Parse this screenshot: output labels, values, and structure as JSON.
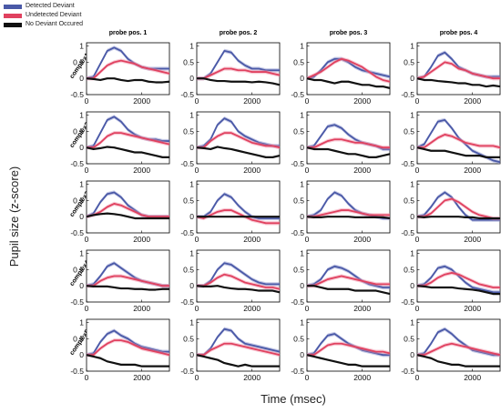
{
  "legend": {
    "items": [
      {
        "label": "Detected Deviant",
        "color": "#4a59a7"
      },
      {
        "label": "Undetected Deviant",
        "color": "#e0415f"
      },
      {
        "label": "No Deviant Occured",
        "color": "#111111"
      }
    ]
  },
  "chart_data": {
    "type": "line",
    "columns": [
      "probe pos. 1",
      "probe pos. 2",
      "probe pos. 3",
      "probe pos. 4"
    ],
    "rows": [
      "complex1",
      "complex2",
      "complex3",
      "complex4",
      "complex5"
    ],
    "xlabel": "Time (msec)",
    "ylabel": "Pupil size (z-score)",
    "xlim": [
      0,
      3000
    ],
    "ylim": [
      -0.5,
      1.1
    ],
    "xticks": [
      0,
      2000
    ],
    "yticks": [
      -0.5,
      0,
      0.5,
      1
    ],
    "x": [
      0,
      250,
      500,
      750,
      1000,
      1250,
      1500,
      1750,
      2000,
      2250,
      2500,
      2750,
      3000
    ],
    "series_names": [
      "Detected Deviant",
      "Undetected Deviant",
      "No Deviant Occured"
    ],
    "panels": [
      [
        {
          "series": [
            [
              0,
              0.05,
              0.45,
              0.85,
              0.95,
              0.85,
              0.6,
              0.45,
              0.35,
              0.3,
              0.3,
              0.3,
              0.3
            ],
            [
              0,
              0,
              0.2,
              0.4,
              0.5,
              0.55,
              0.5,
              0.45,
              0.35,
              0.3,
              0.25,
              0.2,
              0.15
            ],
            [
              0,
              -0.02,
              -0.05,
              0,
              0,
              -0.05,
              -0.08,
              -0.05,
              -0.05,
              -0.1,
              -0.12,
              -0.12,
              -0.1
            ]
          ]
        },
        {
          "series": [
            [
              0,
              0,
              0.15,
              0.5,
              0.85,
              0.8,
              0.55,
              0.4,
              0.3,
              0.3,
              0.25,
              0.25,
              0.25
            ],
            [
              0,
              0,
              0.1,
              0.2,
              0.3,
              0.3,
              0.25,
              0.25,
              0.2,
              0.2,
              0.2,
              0.15,
              0.1
            ],
            [
              0,
              0,
              -0.05,
              -0.08,
              -0.08,
              -0.1,
              -0.1,
              -0.1,
              -0.12,
              -0.1,
              -0.12,
              -0.15,
              -0.2
            ]
          ]
        },
        {
          "series": [
            [
              0,
              0.05,
              0.25,
              0.5,
              0.6,
              0.6,
              0.5,
              0.35,
              0.25,
              0.2,
              0.15,
              0.1,
              0.05
            ],
            [
              0,
              0.1,
              0.2,
              0.35,
              0.5,
              0.6,
              0.55,
              0.45,
              0.35,
              0.2,
              0.05,
              -0.05,
              -0.1
            ],
            [
              0,
              -0.05,
              -0.05,
              -0.1,
              -0.15,
              -0.1,
              -0.1,
              -0.15,
              -0.2,
              -0.2,
              -0.25,
              -0.25,
              -0.3
            ]
          ]
        },
        {
          "series": [
            [
              0,
              0.05,
              0.35,
              0.7,
              0.8,
              0.6,
              0.35,
              0.25,
              0.15,
              0.1,
              0.05,
              0.05,
              0.05
            ],
            [
              0,
              0.05,
              0.2,
              0.35,
              0.5,
              0.45,
              0.3,
              0.25,
              0.15,
              0.1,
              0.05,
              0,
              0
            ],
            [
              0,
              -0.05,
              -0.05,
              -0.08,
              -0.1,
              -0.12,
              -0.15,
              -0.15,
              -0.2,
              -0.2,
              -0.25,
              -0.22,
              -0.25
            ]
          ]
        }
      ],
      [
        {
          "series": [
            [
              0,
              0.05,
              0.45,
              0.85,
              0.95,
              0.8,
              0.55,
              0.4,
              0.3,
              0.25,
              0.25,
              0.2,
              0.2
            ],
            [
              0,
              0,
              0.15,
              0.35,
              0.45,
              0.45,
              0.4,
              0.35,
              0.3,
              0.25,
              0.2,
              0.15,
              0.1
            ],
            [
              0,
              -0.05,
              -0.02,
              0.02,
              0,
              -0.05,
              -0.1,
              -0.15,
              -0.15,
              -0.2,
              -0.25,
              -0.3,
              -0.3
            ]
          ]
        },
        {
          "series": [
            [
              0,
              0.05,
              0.25,
              0.7,
              0.9,
              0.8,
              0.5,
              0.35,
              0.25,
              0.15,
              0.1,
              0.05,
              0.05
            ],
            [
              0,
              0,
              0.2,
              0.35,
              0.45,
              0.45,
              0.35,
              0.25,
              0.15,
              0.1,
              0.05,
              0.05,
              0
            ],
            [
              0,
              -0.02,
              -0.05,
              0.02,
              -0.02,
              -0.05,
              -0.1,
              -0.15,
              -0.2,
              -0.25,
              -0.3,
              -0.3,
              -0.25
            ]
          ]
        },
        {
          "series": [
            [
              0,
              0.05,
              0.35,
              0.65,
              0.7,
              0.6,
              0.4,
              0.25,
              0.15,
              0.1,
              0.05,
              -0.05,
              -0.05
            ],
            [
              0,
              0,
              0.1,
              0.2,
              0.25,
              0.25,
              0.2,
              0.15,
              0.15,
              0.1,
              0.05,
              0,
              0
            ],
            [
              0,
              -0.05,
              -0.05,
              -0.05,
              -0.1,
              -0.15,
              -0.2,
              -0.2,
              -0.25,
              -0.3,
              -0.3,
              -0.25,
              -0.2
            ]
          ]
        },
        {
          "series": [
            [
              0,
              0.1,
              0.45,
              0.8,
              0.85,
              0.6,
              0.3,
              0.1,
              -0.1,
              -0.2,
              -0.3,
              -0.4,
              -0.45
            ],
            [
              0,
              0,
              0.15,
              0.3,
              0.4,
              0.35,
              0.25,
              0.15,
              0.1,
              0.05,
              0.05,
              0.05,
              0
            ],
            [
              0,
              -0.05,
              -0.1,
              -0.1,
              -0.1,
              -0.15,
              -0.2,
              -0.25,
              -0.25,
              -0.25,
              -0.3,
              -0.3,
              -0.3
            ]
          ]
        }
      ],
      [
        {
          "series": [
            [
              0,
              0.1,
              0.45,
              0.7,
              0.75,
              0.6,
              0.35,
              0.2,
              0.05,
              0,
              0,
              0,
              0
            ],
            [
              0,
              0.05,
              0.15,
              0.3,
              0.4,
              0.35,
              0.25,
              0.15,
              0.05,
              0,
              0,
              0,
              0
            ],
            [
              0,
              0.05,
              0.08,
              0.1,
              0.08,
              0.05,
              0,
              -0.05,
              -0.05,
              -0.05,
              -0.05,
              -0.05,
              -0.05
            ]
          ]
        },
        {
          "series": [
            [
              0,
              0,
              0.15,
              0.5,
              0.7,
              0.6,
              0.35,
              0.15,
              0,
              -0.05,
              -0.05,
              -0.05,
              -0.05
            ],
            [
              0,
              -0.05,
              0.05,
              0.15,
              0.2,
              0.2,
              0.1,
              0,
              -0.1,
              -0.15,
              -0.2,
              -0.2,
              -0.2
            ],
            [
              0,
              0,
              0,
              0,
              0,
              0,
              0,
              0,
              0,
              0,
              0,
              0,
              0
            ]
          ]
        },
        {
          "series": [
            [
              0,
              0.05,
              0.2,
              0.55,
              0.75,
              0.65,
              0.4,
              0.2,
              0.1,
              0.05,
              0,
              -0.05,
              -0.05
            ],
            [
              0,
              0,
              0.05,
              0.1,
              0.15,
              0.2,
              0.2,
              0.15,
              0.1,
              0.05,
              0.05,
              0.05,
              0.05
            ],
            [
              0,
              -0.02,
              -0.02,
              0,
              0,
              0,
              0,
              -0.02,
              -0.02,
              -0.02,
              -0.02,
              -0.02,
              -0.05
            ]
          ]
        },
        {
          "series": [
            [
              0,
              0.05,
              0.3,
              0.6,
              0.75,
              0.6,
              0.3,
              0.05,
              -0.1,
              -0.1,
              -0.1,
              -0.1,
              -0.1
            ],
            [
              0,
              0,
              0.1,
              0.3,
              0.5,
              0.55,
              0.45,
              0.3,
              0.15,
              0.05,
              0,
              -0.05,
              -0.05
            ],
            [
              0,
              -0.02,
              0,
              0,
              0,
              0,
              0,
              -0.02,
              -0.02,
              -0.05,
              -0.05,
              -0.05,
              -0.05
            ]
          ]
        }
      ],
      [
        {
          "series": [
            [
              0,
              0.05,
              0.3,
              0.6,
              0.7,
              0.55,
              0.4,
              0.25,
              0.15,
              0.1,
              0.05,
              0,
              0
            ],
            [
              0,
              0,
              0.15,
              0.25,
              0.3,
              0.3,
              0.25,
              0.2,
              0.15,
              0.1,
              0.05,
              0,
              0
            ],
            [
              0,
              -0.02,
              -0.02,
              -0.02,
              -0.05,
              -0.08,
              -0.08,
              -0.1,
              -0.1,
              -0.12,
              -0.12,
              -0.1,
              -0.1
            ]
          ]
        },
        {
          "series": [
            [
              0,
              0,
              0.15,
              0.5,
              0.7,
              0.65,
              0.5,
              0.35,
              0.2,
              0.1,
              0.05,
              0.05,
              0.05
            ],
            [
              0,
              0,
              0.1,
              0.25,
              0.35,
              0.3,
              0.2,
              0.1,
              0.05,
              0,
              -0.05,
              -0.05,
              -0.1
            ],
            [
              0,
              -0.02,
              -0.02,
              0,
              -0.05,
              -0.08,
              -0.1,
              -0.1,
              -0.12,
              -0.15,
              -0.15,
              -0.15,
              -0.2
            ]
          ]
        },
        {
          "series": [
            [
              0,
              0.05,
              0.2,
              0.5,
              0.6,
              0.55,
              0.45,
              0.3,
              0.15,
              0.05,
              0,
              -0.05,
              -0.05
            ],
            [
              0,
              0,
              0.1,
              0.2,
              0.25,
              0.3,
              0.25,
              0.2,
              0.15,
              0.1,
              0.05,
              0.05,
              0.05
            ],
            [
              0,
              0,
              -0.05,
              -0.1,
              -0.1,
              -0.1,
              -0.1,
              -0.15,
              -0.15,
              -0.15,
              -0.15,
              -0.2,
              -0.25
            ]
          ]
        },
        {
          "series": [
            [
              0,
              0.05,
              0.25,
              0.55,
              0.6,
              0.5,
              0.3,
              0.1,
              -0.05,
              -0.1,
              -0.15,
              -0.2,
              -0.2
            ],
            [
              0,
              0,
              0.1,
              0.25,
              0.35,
              0.4,
              0.35,
              0.25,
              0.15,
              0.05,
              0,
              -0.05,
              -0.05
            ],
            [
              0,
              -0.02,
              -0.05,
              -0.05,
              -0.05,
              -0.05,
              -0.08,
              -0.1,
              -0.12,
              -0.15,
              -0.2,
              -0.25,
              -0.25
            ]
          ]
        }
      ],
      [
        {
          "series": [
            [
              0,
              0.05,
              0.4,
              0.65,
              0.75,
              0.6,
              0.5,
              0.35,
              0.25,
              0.2,
              0.15,
              0.1,
              0.1
            ],
            [
              0,
              0,
              0.2,
              0.35,
              0.45,
              0.45,
              0.4,
              0.3,
              0.2,
              0.15,
              0.1,
              0.05,
              0
            ],
            [
              0,
              -0.05,
              -0.1,
              -0.2,
              -0.25,
              -0.3,
              -0.3,
              -0.3,
              -0.35,
              -0.35,
              -0.35,
              -0.35,
              -0.35
            ]
          ]
        },
        {
          "series": [
            [
              0,
              0,
              0.2,
              0.55,
              0.8,
              0.75,
              0.5,
              0.35,
              0.3,
              0.25,
              0.2,
              0.15,
              0.1
            ],
            [
              0,
              0,
              0.15,
              0.25,
              0.35,
              0.35,
              0.3,
              0.25,
              0.2,
              0.15,
              0.1,
              0.05,
              0
            ],
            [
              0,
              -0.05,
              -0.1,
              -0.15,
              -0.25,
              -0.3,
              -0.35,
              -0.3,
              -0.35,
              -0.35,
              -0.35,
              -0.35,
              -0.35
            ]
          ]
        },
        {
          "series": [
            [
              0,
              0.05,
              0.35,
              0.6,
              0.65,
              0.5,
              0.35,
              0.25,
              0.15,
              0.1,
              0.05,
              0,
              0
            ],
            [
              0,
              0,
              0.15,
              0.3,
              0.35,
              0.35,
              0.3,
              0.25,
              0.2,
              0.15,
              0.1,
              0.1,
              0.05
            ],
            [
              0,
              -0.05,
              -0.1,
              -0.15,
              -0.2,
              -0.25,
              -0.3,
              -0.3,
              -0.35,
              -0.35,
              -0.35,
              -0.35,
              -0.35
            ]
          ]
        },
        {
          "series": [
            [
              0,
              0.05,
              0.35,
              0.7,
              0.8,
              0.65,
              0.45,
              0.3,
              0.15,
              0.1,
              0.05,
              0,
              0
            ],
            [
              0,
              0,
              0.1,
              0.2,
              0.3,
              0.35,
              0.3,
              0.25,
              0.2,
              0.15,
              0.1,
              0.05,
              0
            ],
            [
              0,
              -0.05,
              -0.1,
              -0.2,
              -0.25,
              -0.3,
              -0.3,
              -0.35,
              -0.35,
              -0.35,
              -0.35,
              -0.35,
              -0.35
            ]
          ]
        }
      ]
    ]
  }
}
